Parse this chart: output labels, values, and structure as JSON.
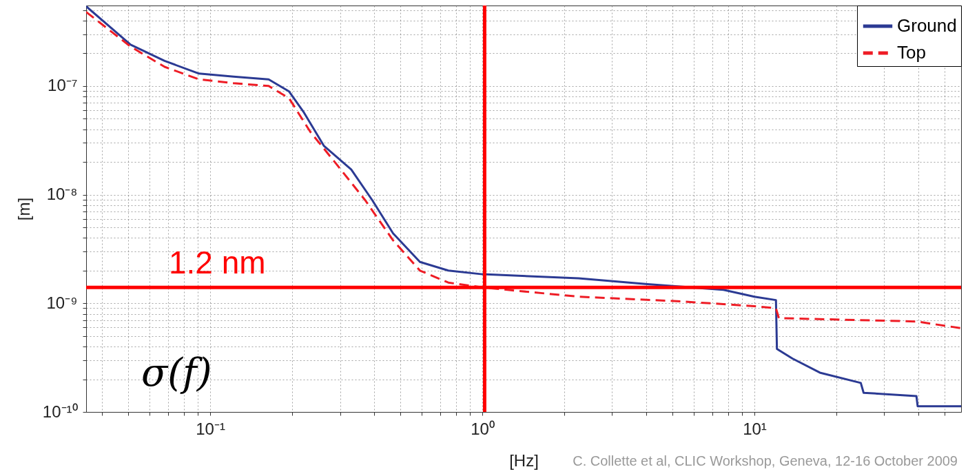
{
  "chart_data": {
    "type": "line",
    "xlabel": "[Hz]",
    "ylabel": "[m]",
    "log": "xy",
    "grid": true,
    "legend": "top right",
    "marker": "none",
    "xlim": [
      0.035,
      57.5
    ],
    "ylim": [
      1e-10,
      5.5e-07
    ],
    "xticks": [
      {
        "value": 0.04,
        "label": null
      },
      {
        "value": 0.05,
        "label": null
      },
      {
        "value": 0.06,
        "label": null
      },
      {
        "value": 0.07,
        "label": null
      },
      {
        "value": 0.08,
        "label": null
      },
      {
        "value": 0.09,
        "label": null
      },
      {
        "value": 0.1,
        "label": "10⁻¹"
      },
      {
        "value": 0.2,
        "label": null
      },
      {
        "value": 0.3,
        "label": null
      },
      {
        "value": 0.4,
        "label": null
      },
      {
        "value": 0.5,
        "label": null
      },
      {
        "value": 0.6,
        "label": null
      },
      {
        "value": 0.7,
        "label": null
      },
      {
        "value": 0.8,
        "label": null
      },
      {
        "value": 0.9,
        "label": null
      },
      {
        "value": 1,
        "label": "10⁰"
      },
      {
        "value": 2,
        "label": null
      },
      {
        "value": 3,
        "label": null
      },
      {
        "value": 4,
        "label": null
      },
      {
        "value": 5,
        "label": null
      },
      {
        "value": 6,
        "label": null
      },
      {
        "value": 7,
        "label": null
      },
      {
        "value": 8,
        "label": null
      },
      {
        "value": 9,
        "label": null
      },
      {
        "value": 10,
        "label": "10¹"
      },
      {
        "value": 20,
        "label": null
      },
      {
        "value": 30,
        "label": null
      },
      {
        "value": 40,
        "label": null
      },
      {
        "value": 50,
        "label": null
      }
    ],
    "yticks": [
      {
        "value": 1e-10,
        "label": "10⁻¹⁰"
      },
      {
        "value": 2e-10,
        "label": null
      },
      {
        "value": 3e-10,
        "label": null
      },
      {
        "value": 4e-10,
        "label": null
      },
      {
        "value": 5e-10,
        "label": null
      },
      {
        "value": 6e-10,
        "label": null
      },
      {
        "value": 7e-10,
        "label": null
      },
      {
        "value": 8e-10,
        "label": null
      },
      {
        "value": 9e-10,
        "label": null
      },
      {
        "value": 1e-09,
        "label": "10⁻⁹"
      },
      {
        "value": 2e-09,
        "label": null
      },
      {
        "value": 3e-09,
        "label": null
      },
      {
        "value": 4e-09,
        "label": null
      },
      {
        "value": 5e-09,
        "label": null
      },
      {
        "value": 6e-09,
        "label": null
      },
      {
        "value": 7e-09,
        "label": null
      },
      {
        "value": 8e-09,
        "label": null
      },
      {
        "value": 9e-09,
        "label": null
      },
      {
        "value": 1e-08,
        "label": "10⁻⁸"
      },
      {
        "value": 2e-08,
        "label": null
      },
      {
        "value": 3e-08,
        "label": null
      },
      {
        "value": 4e-08,
        "label": null
      },
      {
        "value": 5e-08,
        "label": null
      },
      {
        "value": 6e-08,
        "label": null
      },
      {
        "value": 7e-08,
        "label": null
      },
      {
        "value": 8e-08,
        "label": null
      },
      {
        "value": 9e-08,
        "label": null
      },
      {
        "value": 1e-07,
        "label": "10⁻⁷"
      },
      {
        "value": 2e-07,
        "label": null
      },
      {
        "value": 3e-07,
        "label": null
      },
      {
        "value": 4e-07,
        "label": null
      },
      {
        "value": 5e-07,
        "label": null
      }
    ],
    "series": [
      {
        "name": "Ground",
        "color": "#2b3a93",
        "line_style": "solid",
        "x": [
          0.035,
          0.051,
          0.068,
          0.091,
          0.122,
          0.164,
          0.195,
          0.22,
          0.262,
          0.33,
          0.394,
          0.47,
          0.59,
          0.75,
          1,
          2.26,
          4.05,
          7.7,
          10,
          12,
          12.1,
          13.8,
          17.4,
          24.6,
          25.2,
          39.4,
          39.8,
          57.5
        ],
        "values": [
          5.4e-07,
          2.4e-07,
          1.7e-07,
          1.3e-07,
          1.22e-07,
          1.15e-07,
          8.9e-08,
          5.8e-08,
          2.8e-08,
          1.7e-08,
          8.9e-09,
          4.4e-09,
          2.4e-09,
          2e-09,
          1.85e-09,
          1.7e-09,
          1.5e-09,
          1.33e-09,
          1.15e-09,
          1.07e-09,
          3.8e-10,
          3.1e-10,
          2.3e-10,
          1.85e-10,
          1.5e-10,
          1.4e-10,
          1.13e-10,
          1.13e-10
        ]
      },
      {
        "name": "Top",
        "color": "#ee1c25",
        "line_style": "dashed",
        "x": [
          0.035,
          0.051,
          0.068,
          0.091,
          0.122,
          0.164,
          0.195,
          0.233,
          0.294,
          0.371,
          0.47,
          0.59,
          0.75,
          1,
          2.26,
          5.4,
          10,
          12,
          12.3,
          39.4,
          57.5
        ],
        "values": [
          4.8e-07,
          2.3e-07,
          1.5e-07,
          1.15e-07,
          1.06e-07,
          1e-07,
          7.7e-08,
          3.8e-08,
          1.85e-08,
          8.9e-09,
          3.8e-09,
          2e-09,
          1.55e-09,
          1.4e-09,
          1.15e-09,
          1.04e-09,
          9.4e-10,
          9e-10,
          7.3e-10,
          6.8e-10,
          5.9e-10
        ]
      }
    ],
    "ref_lines": [
      {
        "axis": "y",
        "value": 1.4e-09,
        "label": "1.2 nm",
        "color": "#ff0000"
      },
      {
        "axis": "x",
        "value": 1.02,
        "color": "#ff0000"
      }
    ],
    "annotations": [
      "σ(f)",
      "C. Collette et al, CLIC Workshop, Geneva, 12-16 October 2009"
    ]
  }
}
